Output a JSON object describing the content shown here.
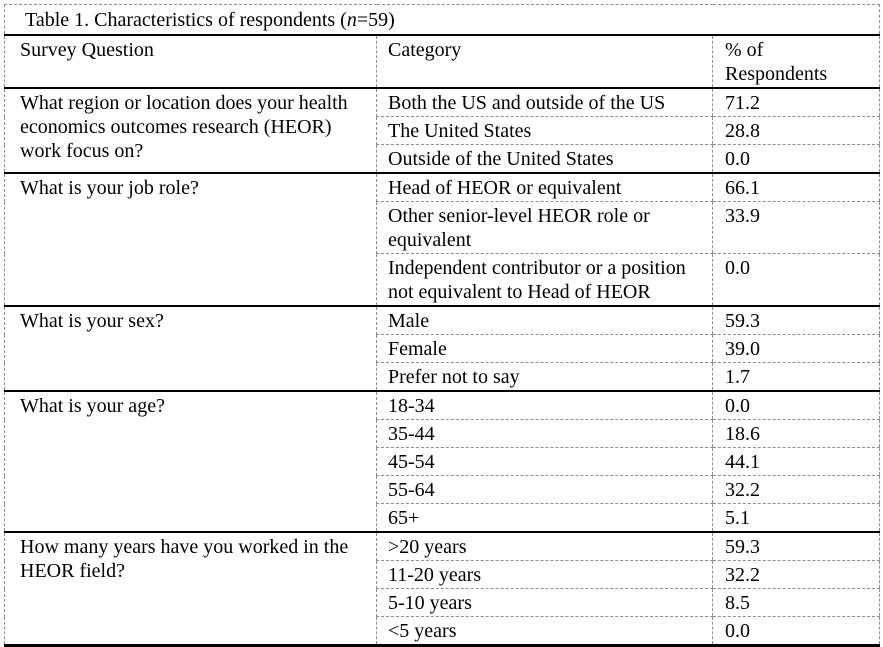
{
  "table": {
    "title_prefix": "Table 1. Characteristics of respondents (",
    "title_n": "n",
    "title_suffix": "=59)",
    "columns": [
      "Survey Question",
      "Category",
      "% of\nRespondents"
    ],
    "sections": [
      {
        "question": "What region or location does your health\neconomics outcomes research (HEOR)\nwork focus on?",
        "rows": [
          {
            "category": "Both the US and outside of the US",
            "percent": "71.2"
          },
          {
            "category": "The United States",
            "percent": "28.8"
          },
          {
            "category": "Outside of the United States",
            "percent": "0.0"
          }
        ]
      },
      {
        "question": "What is your job role?",
        "rows": [
          {
            "category": "Head of HEOR or equivalent",
            "percent": "66.1"
          },
          {
            "category": "Other senior-level HEOR role or\nequivalent",
            "percent": "33.9"
          },
          {
            "category": "Independent contributor or a position\nnot equivalent to Head of HEOR",
            "percent": "0.0"
          }
        ]
      },
      {
        "question": "What is your sex?",
        "rows": [
          {
            "category": "Male",
            "percent": "59.3"
          },
          {
            "category": "Female",
            "percent": "39.0"
          },
          {
            "category": "Prefer not to say",
            "percent": "1.7"
          }
        ]
      },
      {
        "question": "What is your age?",
        "rows": [
          {
            "category": "18-34",
            "percent": "0.0"
          },
          {
            "category": "35-44",
            "percent": "18.6"
          },
          {
            "category": "45-54",
            "percent": "44.1"
          },
          {
            "category": "55-64",
            "percent": "32.2"
          },
          {
            "category": "65+",
            "percent": "5.1"
          }
        ]
      },
      {
        "question": "How many years have you worked in the\nHEOR field?",
        "rows": [
          {
            "category": ">20 years",
            "percent": "59.3"
          },
          {
            "category": "11-20 years",
            "percent": "32.2"
          },
          {
            "category": "5-10 years",
            "percent": "8.5"
          },
          {
            "category": "<5 years",
            "percent": "0.0"
          }
        ]
      }
    ]
  }
}
